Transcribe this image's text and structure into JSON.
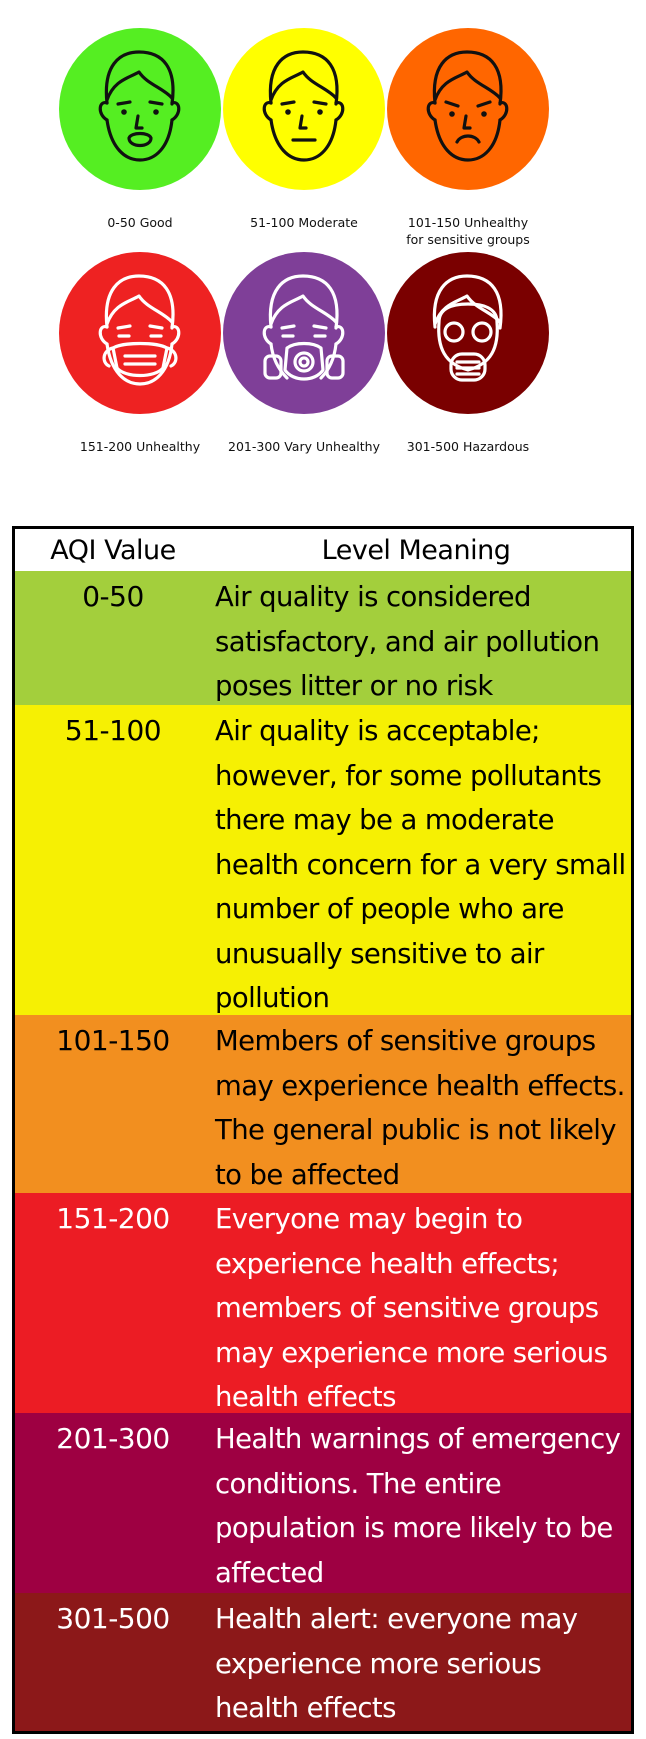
{
  "categories": [
    {
      "label": "0-50 Good",
      "color": "#55ee22",
      "face": "open-mouth-face-icon"
    },
    {
      "label": "51-100 Moderate",
      "color": "#ffff00",
      "face": "neutral-face-icon"
    },
    {
      "label": "101-150 Unhealthy for sensitive groups",
      "label_line1": "101-150 Unhealthy",
      "label_line2": "for sensitive groups",
      "color": "#ff6600",
      "face": "worried-face-icon"
    },
    {
      "label": "151-200 Unhealthy",
      "color": "#ee2222",
      "face": "surgical-mask-face-icon"
    },
    {
      "label": "201-300 Vary Unhealthy",
      "color": "#7f3f98",
      "face": "respirator-face-icon"
    },
    {
      "label": "301-500 Hazardous",
      "color": "#7a0000",
      "face": "gas-mask-face-icon"
    }
  ],
  "table": {
    "header": {
      "col1": "AQI Value",
      "col2": "Level Meaning"
    },
    "rows": [
      {
        "value": "0-50",
        "meaning": "Air quality is considered satisfactory, and air pollution poses litter or no risk",
        "bg": "#a3cf3c",
        "text": "#000000"
      },
      {
        "value": "51-100",
        "meaning": "Air quality is acceptable; however, for some pollutants there may be a moderate health concern for a very small number of people who are unusually sensitive to air pollution",
        "bg": "#f6f003",
        "text": "#000000"
      },
      {
        "value": "101-150",
        "meaning": "Members of sensitive groups may experience health effects. The general public is not likely to be affected",
        "bg": "#f28f1f",
        "text": "#000000"
      },
      {
        "value": "151-200",
        "meaning": "Everyone may begin to experience health effects; members of sensitive groups may experience more serious health effects",
        "bg": "#ec1c24",
        "text": "#ffffff"
      },
      {
        "value": "201-300",
        "meaning": "Health warnings of emergency conditions. The entire population is more likely to be affected",
        "bg": "#9e0042",
        "text": "#ffffff"
      },
      {
        "value": "301-500",
        "meaning": "Health alert: everyone may experience more serious health effects",
        "bg": "#8c1819",
        "text": "#ffffff"
      }
    ]
  }
}
